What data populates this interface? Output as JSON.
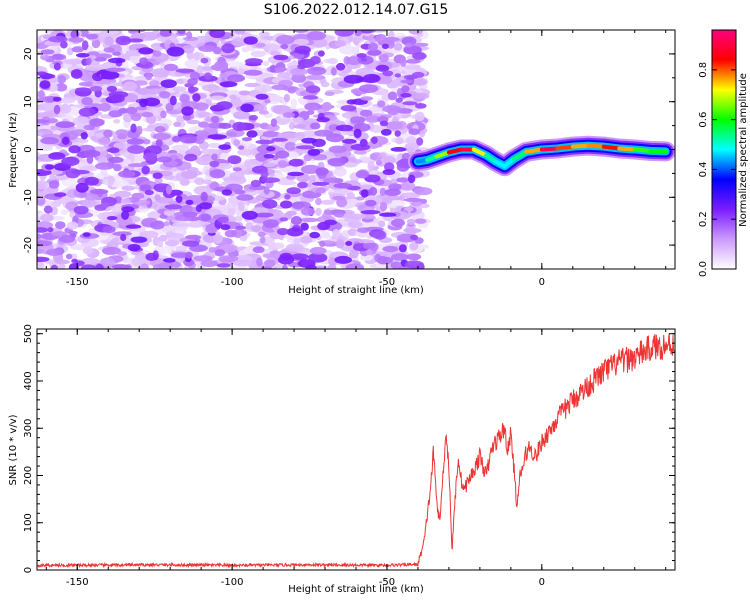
{
  "figure": {
    "title": "S106.2022.012.14.07.G15"
  },
  "colorbar": {
    "label": "Normalized spectral amplitude",
    "ticks": [
      "0.0",
      "0.2",
      "0.4",
      "0.6",
      "0.8"
    ],
    "tick_values": [
      0.0,
      0.2,
      0.4,
      0.6,
      0.8
    ],
    "range": [
      0,
      0.96
    ],
    "stops": [
      "#ffffff",
      "#cc99ff",
      "#7a1cff",
      "#0000ff",
      "#00ffff",
      "#00ff00",
      "#ffff00",
      "#ff0000",
      "#ff0080"
    ]
  },
  "chart_data": [
    {
      "type": "heatmap",
      "xlabel": "Height of straight line (km)",
      "ylabel": "Frequency (Hz)",
      "xlim": [
        -163,
        43
      ],
      "ylim": [
        -25,
        25
      ],
      "xticks": [
        -150,
        -100,
        -50,
        0
      ],
      "yticks": [
        -20,
        -10,
        0,
        10,
        20
      ],
      "noise_region_x": [
        -163,
        -40
      ],
      "ridge": {
        "x": [
          -40,
          -37,
          -34,
          -30,
          -26,
          -22,
          -18,
          -15,
          -12,
          -9,
          -5,
          0,
          5,
          10,
          15,
          20,
          25,
          30,
          35,
          40
        ],
        "freq": [
          -2.5,
          -2.2,
          -1.5,
          -0.6,
          0.0,
          0.0,
          -1.2,
          -2.5,
          -3.5,
          -2.0,
          -0.5,
          0.0,
          0.2,
          0.6,
          0.8,
          0.6,
          0.2,
          0.0,
          -0.3,
          -0.4
        ],
        "amplitude": [
          0.35,
          0.5,
          0.55,
          0.8,
          0.9,
          0.9,
          0.55,
          0.5,
          0.45,
          0.5,
          0.6,
          0.92,
          0.9,
          0.72,
          0.8,
          0.75,
          0.92,
          0.6,
          0.65,
          0.55
        ]
      }
    },
    {
      "type": "line",
      "xlabel": "Height of straight line (km)",
      "ylabel": "SNR (10 * v/v)",
      "xlim": [
        -163,
        43
      ],
      "ylim": [
        0,
        510
      ],
      "xticks": [
        -150,
        -100,
        -50,
        0
      ],
      "yticks": [
        0,
        100,
        200,
        300,
        400,
        500
      ],
      "color": "#ee3333",
      "series": [
        {
          "x": [
            -163,
            -150,
            -125,
            -100,
            -75,
            -50,
            -40,
            -38,
            -36,
            -35,
            -34,
            -33,
            -32,
            -31,
            -30,
            -29,
            -28,
            -27,
            -26,
            -25,
            -24,
            -22,
            -20,
            -18,
            -16,
            -14,
            -12,
            -11,
            -10,
            -9,
            -8,
            -7,
            -6,
            -5,
            -4,
            -2,
            0,
            5,
            10,
            15,
            20,
            25,
            30,
            35,
            40,
            43
          ],
          "y": [
            10,
            10,
            11,
            10,
            11,
            10,
            12,
            60,
            170,
            250,
            150,
            100,
            190,
            295,
            220,
            40,
            150,
            240,
            190,
            170,
            185,
            210,
            240,
            200,
            260,
            280,
            300,
            250,
            290,
            215,
            130,
            200,
            220,
            250,
            260,
            240,
            270,
            320,
            360,
            390,
            420,
            440,
            450,
            470,
            475,
            480
          ]
        }
      ]
    }
  ]
}
